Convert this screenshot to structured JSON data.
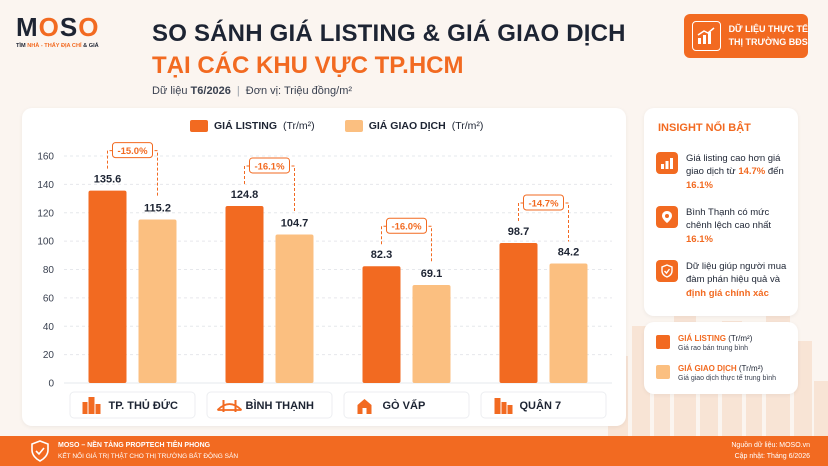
{
  "brand": {
    "logo": "MOSO",
    "tagline_pre": "TÌM ",
    "tagline_hl": "NHÀ - THẤY ĐỊA CHỈ",
    "tagline_post": " & GIÁ"
  },
  "header": {
    "title_line1": "SO SÁNH GIÁ LISTING & GIÁ GIAO DỊCH",
    "title_line2": "TẠI CÁC KHU VỰC TP.HCM",
    "data_label": "Dữ liệu ",
    "data_period": "T6/2026",
    "separator": "|",
    "unit_text": "Đơn vị: Triệu đồng/m²"
  },
  "badge": {
    "line1": "DỮ LIỆU THỰC TẾ",
    "line2": "THỊ TRƯỜNG BĐS",
    "icon": "chart-growth-icon"
  },
  "colors": {
    "accent": "#f26a21",
    "listing": "#f26a21",
    "transaction": "#fbbf80",
    "text": "#1d2433"
  },
  "chart_data": {
    "type": "bar",
    "categories": [
      "TP. THỦ ĐỨC",
      "BÌNH THẠNH",
      "GÒ VẤP",
      "QUẬN 7"
    ],
    "category_icons": [
      "city-buildings-icon",
      "bridge-icon",
      "temple-icon",
      "skyscraper-icon"
    ],
    "series": [
      {
        "name": "GIÁ LISTING",
        "unit": "(Tr/m²)",
        "values": [
          135.6,
          124.8,
          82.3,
          98.7
        ],
        "value_labels": [
          "135.6",
          "124.8",
          "82.3",
          "98.7"
        ]
      },
      {
        "name": "GIÁ GIAO DỊCH",
        "unit": "(Tr/m²)",
        "values": [
          115.2,
          104.7,
          69.1,
          84.2
        ],
        "value_labels": [
          "115.2",
          "104.7",
          "69.1",
          "84.2"
        ]
      }
    ],
    "differences": [
      "-15.0%",
      "-16.1%",
      "-16.0%",
      "-14.7%"
    ],
    "ylim": [
      0,
      160
    ],
    "yticks": [
      0,
      20,
      40,
      60,
      80,
      100,
      120,
      140,
      160
    ],
    "grid": true,
    "legend": "top"
  },
  "insights": {
    "title": "INSIGHT NỔI BẬT",
    "items": [
      {
        "icon": "bar-chart-icon",
        "pre": "Giá listing cao hơn giá giao dịch từ ",
        "hl1": "14.7%",
        "mid": " đến ",
        "hl2": "16.1%",
        "post": ""
      },
      {
        "icon": "location-pin-icon",
        "pre": "Bình Thạnh có mức chênh lệch cao nhất ",
        "hl1": "16.1%",
        "mid": "",
        "hl2": "",
        "post": ""
      },
      {
        "icon": "shield-check-icon",
        "pre": "Dữ liệu giúp người mua đàm phán hiệu quả và ",
        "hl1": "định giá chính xác",
        "mid": "",
        "hl2": "",
        "post": ""
      }
    ]
  },
  "legend_box": {
    "listing_name": "GIÁ LISTING",
    "listing_unit": " (Tr/m²)",
    "listing_desc": "Giá rao bán trung bình",
    "deal_name": "GIÁ GIAO DỊCH",
    "deal_unit": " (Tr/m²)",
    "deal_desc": "Giá giao dịch thực tế trung bình"
  },
  "footer": {
    "line1": "MOSO – NỀN TẢNG PROPTECH TIÊN PHONG",
    "line2": "KẾT NỐI GIÁ TRỊ THẬT CHO THỊ TRƯỜNG BẤT ĐỘNG SẢN",
    "source": "Nguồn dữ liệu: MOSO.vn",
    "updated": "Cập nhật: Tháng 6/2026"
  }
}
